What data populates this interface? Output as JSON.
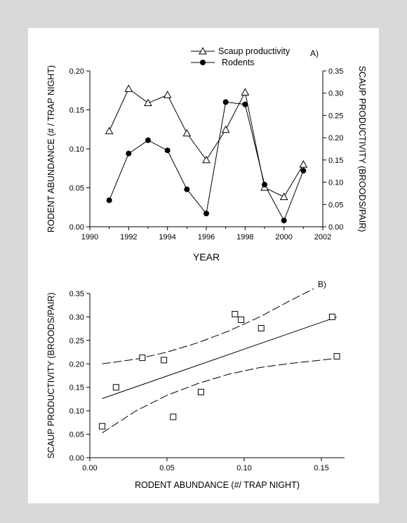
{
  "chart_data": [
    {
      "panel": "A)",
      "type": "line",
      "xlabel": "YEAR",
      "ylabel_left": "RODENT ABUNDANCE (# / TRAP NIGHT)",
      "ylabel_right": "SCAUP PRODUCTIVITY (BROODS/PAIR)",
      "xlim": [
        1990,
        2002
      ],
      "xticks": [
        "1990",
        "1992",
        "1994",
        "1996",
        "1998",
        "2000",
        "2002"
      ],
      "ylim_left": [
        0,
        0.2
      ],
      "yticks_left": [
        "0.00",
        "0.05",
        "0.10",
        "0.15",
        "0.20"
      ],
      "ylim_right": [
        0,
        0.35
      ],
      "yticks_right": [
        "0.00",
        "0.05",
        "0.10",
        "0.15",
        "0.20",
        "0.25",
        "0.30",
        "0.35"
      ],
      "legend": [
        "Scaup productivity",
        "Rodents"
      ],
      "legend_position": "top-right",
      "series": [
        {
          "name": "Scaup productivity",
          "axis": "right",
          "marker": "open-triangle",
          "x": [
            1991,
            1992,
            1993,
            1994,
            1995,
            1996,
            1997,
            1998,
            1999,
            2000,
            2001
          ],
          "y": [
            0.215,
            0.31,
            0.278,
            0.296,
            0.21,
            0.15,
            0.218,
            0.302,
            0.088,
            0.067,
            0.14
          ]
        },
        {
          "name": "Rodents",
          "axis": "left",
          "marker": "filled-circle",
          "x": [
            1991,
            1992,
            1993,
            1994,
            1995,
            1996,
            1997,
            1998,
            1999,
            2000,
            2001
          ],
          "y": [
            0.034,
            0.094,
            0.111,
            0.098,
            0.048,
            0.017,
            0.16,
            0.157,
            0.054,
            0.008,
            0.072
          ]
        }
      ]
    },
    {
      "panel": "B)",
      "type": "scatter",
      "xlabel": "RODENT ABUNDANCE (#/ TRAP NIGHT)",
      "ylabel": "SCAUP PRODUCTIVITY (BROODS/PAIR)",
      "xlim": [
        0,
        0.165
      ],
      "xticks": [
        "0.00",
        "0.05",
        "0.10",
        "0.15"
      ],
      "ylim": [
        0,
        0.35
      ],
      "yticks": [
        "0.00",
        "0.05",
        "0.10",
        "0.15",
        "0.20",
        "0.25",
        "0.30",
        "0.35"
      ],
      "points": {
        "x": [
          0.008,
          0.017,
          0.034,
          0.048,
          0.054,
          0.072,
          0.094,
          0.098,
          0.111,
          0.157,
          0.16
        ],
        "y": [
          0.067,
          0.15,
          0.213,
          0.208,
          0.087,
          0.14,
          0.306,
          0.294,
          0.276,
          0.3,
          0.216
        ]
      },
      "regression_line": {
        "x": [
          0.008,
          0.16
        ],
        "y": [
          0.126,
          0.3
        ]
      },
      "confidence_upper": {
        "x": [
          0.008,
          0.03,
          0.05,
          0.07,
          0.09,
          0.11,
          0.13,
          0.145
        ],
        "y": [
          0.2,
          0.21,
          0.225,
          0.245,
          0.27,
          0.3,
          0.335,
          0.36
        ]
      },
      "confidence_lower": {
        "x": [
          0.008,
          0.03,
          0.05,
          0.07,
          0.09,
          0.11,
          0.13,
          0.15,
          0.16
        ],
        "y": [
          0.053,
          0.1,
          0.133,
          0.158,
          0.178,
          0.192,
          0.201,
          0.208,
          0.212
        ]
      }
    }
  ]
}
